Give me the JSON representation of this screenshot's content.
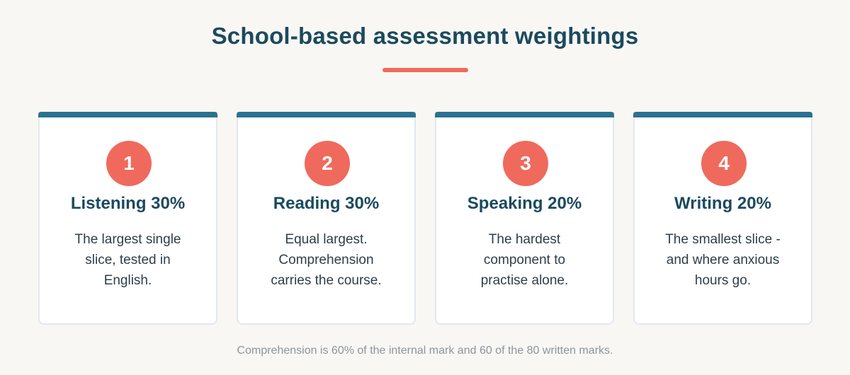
{
  "page": {
    "title": "School-based assessment weightings",
    "footnote": "Comprehension is 60% of the internal mark and 60 of the 80 written marks."
  },
  "cards": [
    {
      "number": "1",
      "heading": "Listening 30%",
      "description": "The largest single slice, tested in English."
    },
    {
      "number": "2",
      "heading": "Reading 30%",
      "description": "Equal largest. Comprehension carries the course."
    },
    {
      "number": "3",
      "heading": "Speaking 20%",
      "description": "The hardest component to practise alone."
    },
    {
      "number": "4",
      "heading": "Writing 20%",
      "description": "The smallest slice - and where anxious hours go."
    }
  ],
  "colors": {
    "background": "#f9f7f4",
    "title": "#1b4a5e",
    "accent": "#ef6a5d",
    "card_bar": "#2a7291",
    "card_border": "#e1e8ee",
    "body_text": "#2e3e48",
    "footnote": "#8a959c"
  }
}
